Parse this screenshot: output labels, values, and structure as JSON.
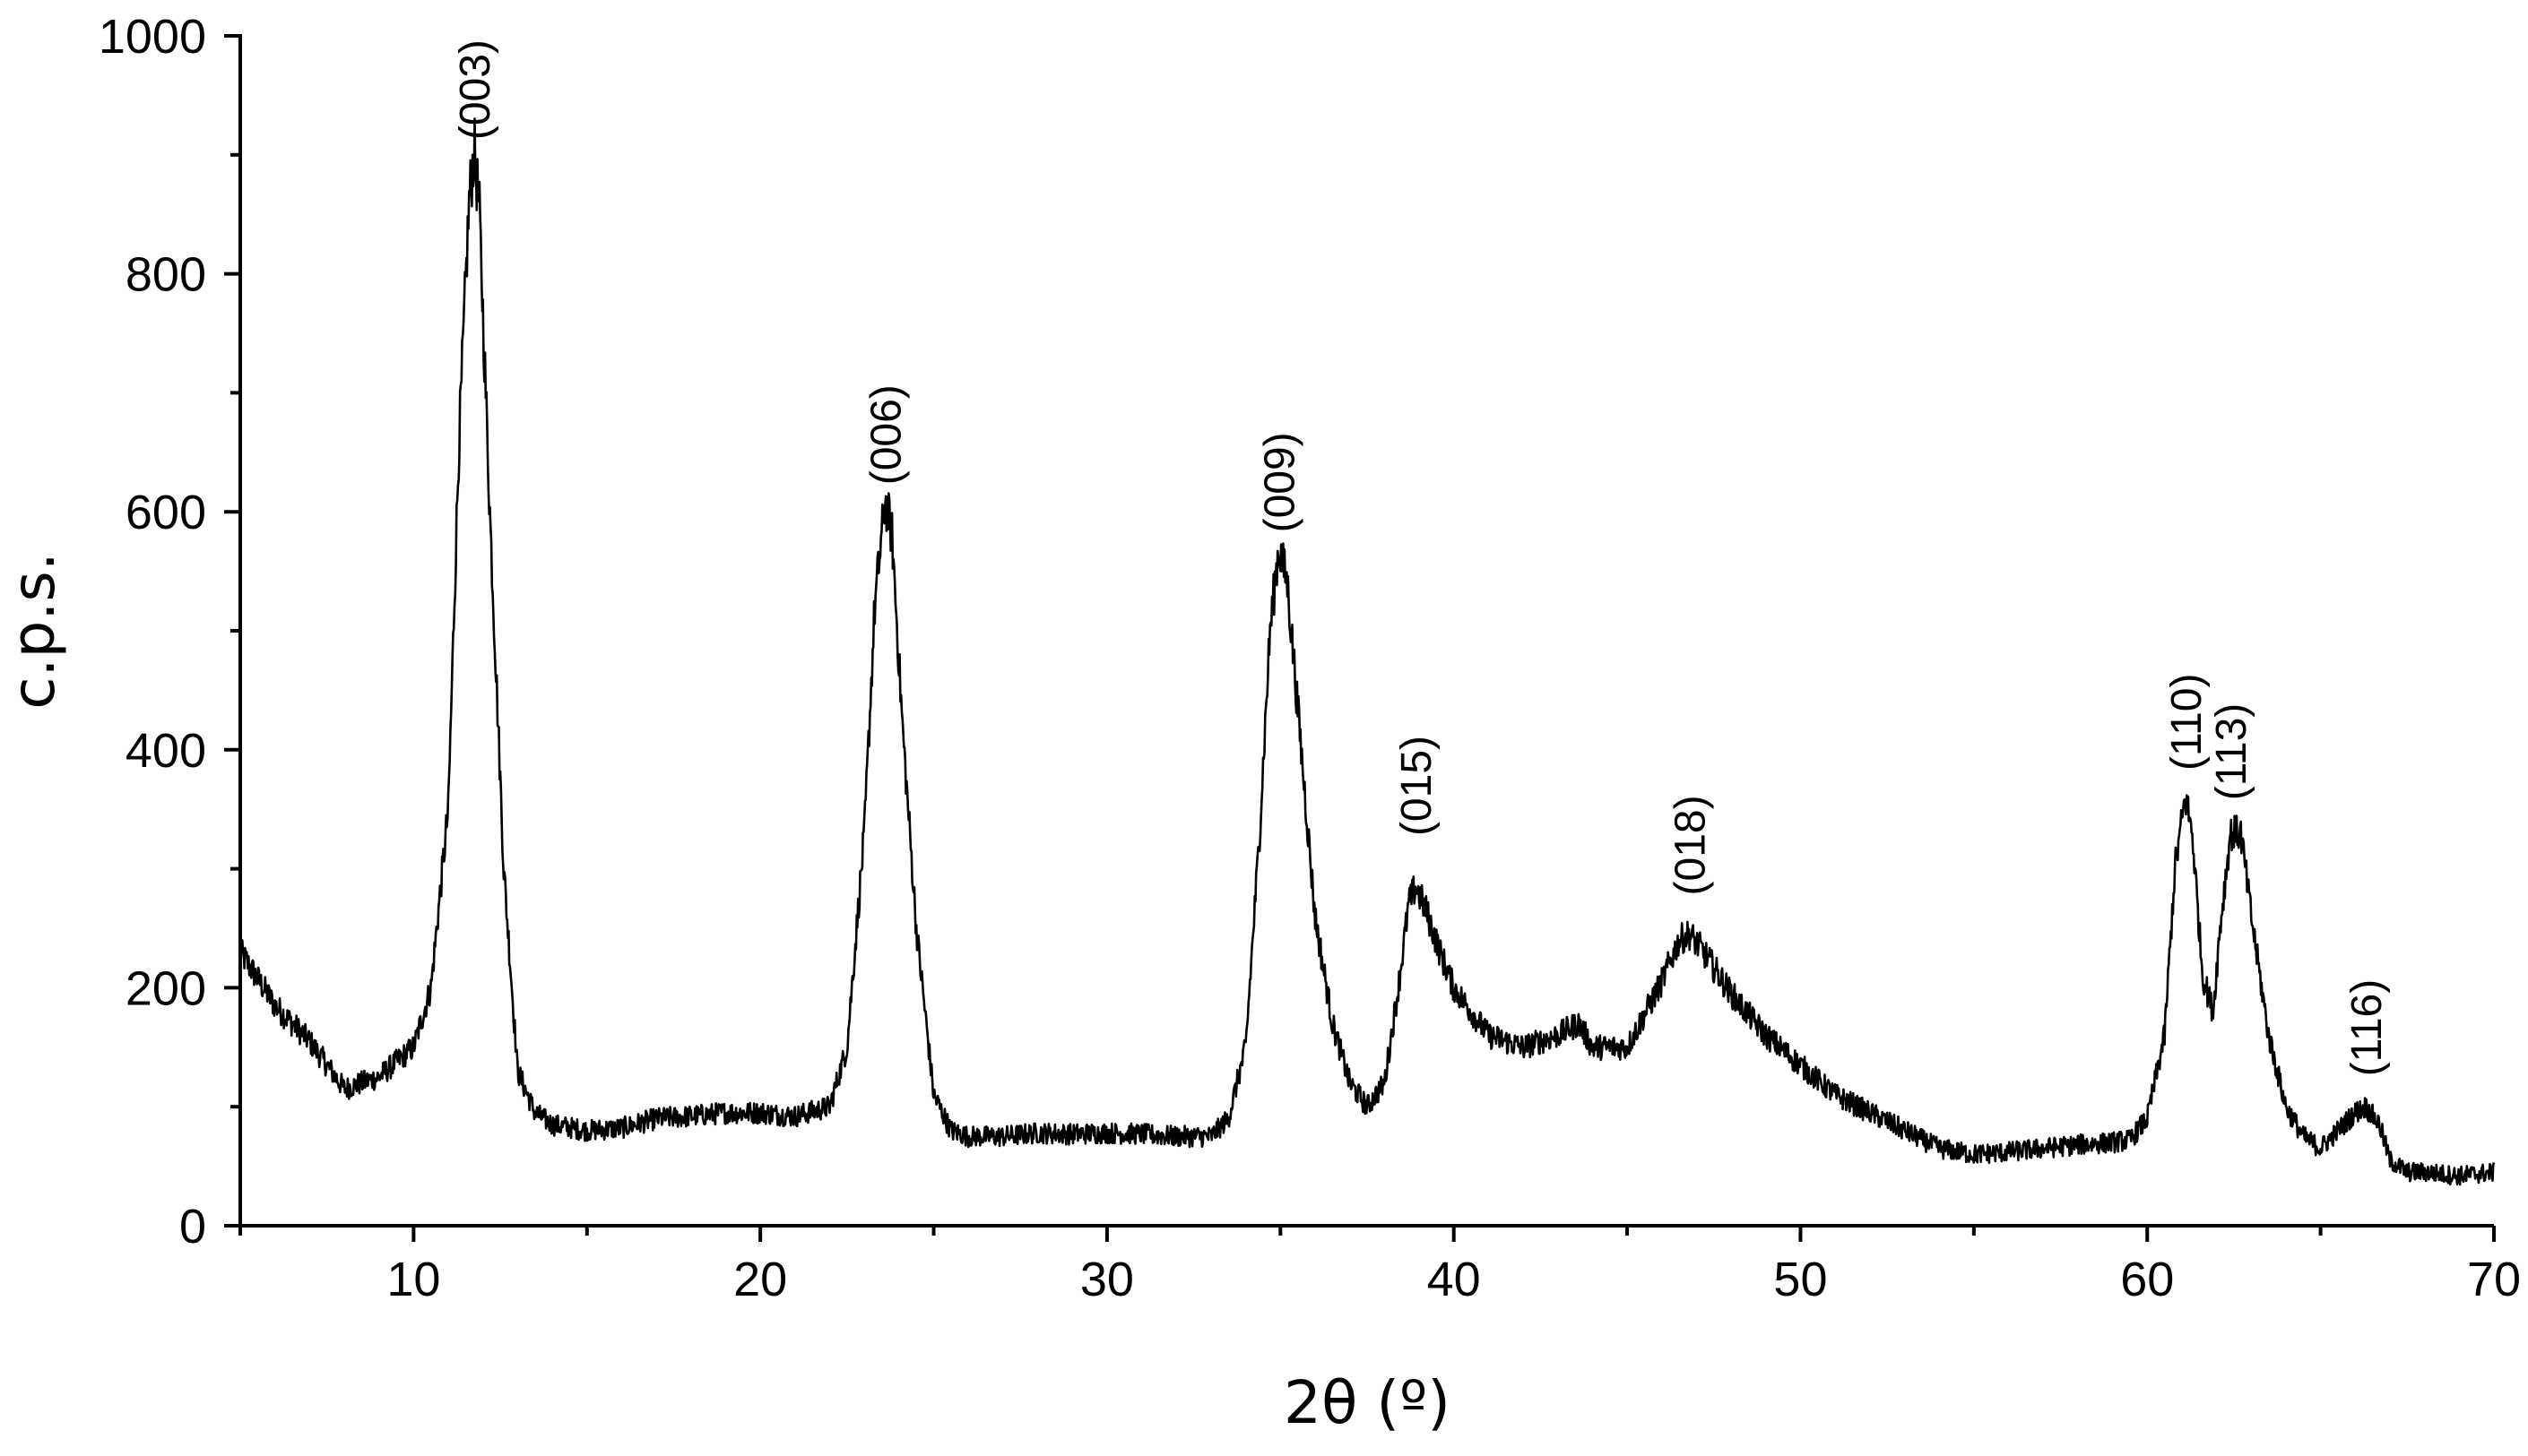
{
  "chart_data": {
    "type": "line",
    "title": "",
    "xlabel": "2θ (º)",
    "ylabel": "c.p.s.",
    "xlim": [
      5,
      70
    ],
    "ylim": [
      0,
      1000
    ],
    "x_ticks": [
      10,
      20,
      30,
      40,
      50,
      60,
      70
    ],
    "x_tick_labels": [
      "10",
      "20",
      "30",
      "40",
      "50",
      "60",
      "70"
    ],
    "y_ticks": [
      0,
      200,
      400,
      600,
      800,
      1000
    ],
    "y_tick_labels": [
      "0",
      "200",
      "400",
      "600",
      "800",
      "1000"
    ],
    "grid": false,
    "legend": "none",
    "line_color": "#000000",
    "series": [
      {
        "x": [
          5,
          6,
          7,
          8,
          9,
          10,
          10.5,
          11,
          11.3,
          11.6,
          11.75,
          11.9,
          12.2,
          12.6,
          13,
          13.5,
          14,
          15,
          16,
          17,
          18,
          19,
          20,
          21,
          22,
          22.5,
          23,
          23.3,
          23.6,
          23.8,
          24.1,
          24.5,
          25,
          25.5,
          26,
          27,
          28,
          29,
          30,
          31,
          32,
          33,
          33.5,
          34,
          34.4,
          34.7,
          34.95,
          35.2,
          35.6,
          36,
          36.5,
          37,
          37.5,
          38,
          38.4,
          38.7,
          38.9,
          39.2,
          39.6,
          40,
          41,
          42,
          43,
          43.6,
          44,
          45,
          46,
          46.5,
          46.8,
          47.2,
          48,
          49,
          50,
          51,
          52,
          53,
          54,
          55,
          56,
          57,
          58,
          59,
          59.5,
          60,
          60.5,
          60.8,
          61.1,
          61.3,
          61.6,
          61.9,
          62.1,
          62.4,
          62.7,
          63,
          63.5,
          64,
          64.5,
          65,
          65.5,
          66,
          66.3,
          66.7,
          67,
          67.5,
          68,
          69,
          70
        ],
        "y": [
          230,
          185,
          155,
          115,
          125,
          150,
          200,
          350,
          650,
          860,
          905,
          850,
          600,
          300,
          130,
          95,
          85,
          80,
          82,
          90,
          92,
          95,
          95,
          92,
          100,
          150,
          330,
          520,
          610,
          580,
          420,
          250,
          110,
          80,
          75,
          75,
          78,
          77,
          78,
          77,
          75,
          75,
          90,
          150,
          330,
          500,
          570,
          540,
          400,
          260,
          170,
          120,
          100,
          120,
          200,
          270,
          285,
          265,
          230,
          200,
          160,
          150,
          160,
          170,
          150,
          150,
          205,
          240,
          245,
          230,
          195,
          160,
          135,
          110,
          95,
          80,
          65,
          60,
          62,
          65,
          68,
          70,
          72,
          90,
          160,
          300,
          360,
          330,
          210,
          180,
          250,
          330,
          330,
          260,
          160,
          100,
          75,
          65,
          80,
          95,
          100,
          85,
          55,
          45,
          45,
          42,
          45
        ]
      }
    ],
    "annotations": [
      {
        "text": "(003)",
        "x": 11.75,
        "y": 905
      },
      {
        "text": "(006)",
        "x": 23.6,
        "y": 615
      },
      {
        "text": "(009)",
        "x": 34.95,
        "y": 575
      },
      {
        "text": "(015)",
        "x": 38.9,
        "y": 320
      },
      {
        "text": "(018)",
        "x": 46.8,
        "y": 270
      },
      {
        "text": "(110)",
        "x": 61.1,
        "y": 375
      },
      {
        "text": "(113)",
        "x": 62.4,
        "y": 350
      },
      {
        "text": "(116)",
        "x": 66.3,
        "y": 118
      }
    ]
  }
}
